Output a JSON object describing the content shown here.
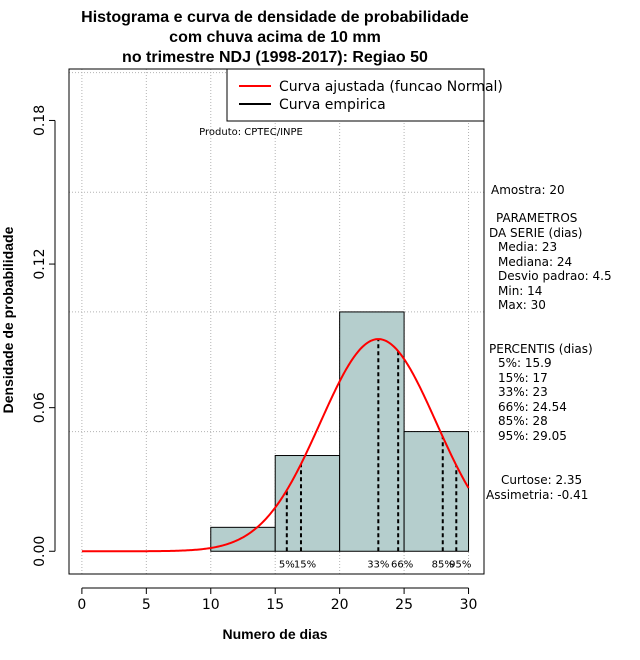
{
  "chart_data": {
    "type": "histogram",
    "title_lines": [
      "Histograma e curva de densidade de probabilidade",
      "com chuva acima de 10 mm",
      "no trimestre NDJ (1998-2017): Regiao 50"
    ],
    "xlabel": "Numero de dias",
    "ylabel": "Densidade de probabilidade",
    "xlim": [
      -1,
      31.2
    ],
    "ylim": [
      -0.0095,
      0.2015
    ],
    "x_ticks": [
      0,
      5,
      10,
      15,
      20,
      25,
      30
    ],
    "y_ticks": [
      0.0,
      0.06,
      0.12,
      0.18
    ],
    "y_tick_labels": [
      "0.00",
      "0.06",
      "0.12",
      "0.18"
    ],
    "grid": true,
    "grid_x": [
      0,
      5,
      10,
      15,
      20,
      25,
      30
    ],
    "grid_y": [
      0.05,
      0.1,
      0.15,
      0.2
    ],
    "bins": [
      {
        "from": 10,
        "to": 15,
        "density": 0.01
      },
      {
        "from": 15,
        "to": 20,
        "density": 0.04
      },
      {
        "from": 20,
        "to": 25,
        "density": 0.1
      },
      {
        "from": 25,
        "to": 30,
        "density": 0.05
      }
    ],
    "bar_color": "#b5cecd",
    "fitted_curve": {
      "name": "Curva ajustada (funcao Normal)",
      "distribution": "normal",
      "mean": 23,
      "sd": 4.5,
      "x_range": [
        0,
        30
      ],
      "color": "#ff0000"
    },
    "empirical_curve": {
      "name": "Curva empirica",
      "color": "#000000"
    },
    "legend_position": "top-right",
    "percentile_lines": [
      {
        "x": 15.9,
        "label": "5%"
      },
      {
        "x": 17,
        "label": "15%"
      },
      {
        "x": 23,
        "label": "33%"
      },
      {
        "x": 24.54,
        "label": "66%"
      },
      {
        "x": 28,
        "label": "85%"
      },
      {
        "x": 29.05,
        "label": "95%"
      }
    ],
    "annotation": "Produto: CPTEC/INPE"
  },
  "side_panel": {
    "sample": "Amostra: 20",
    "params_title_1": "PARAMETROS",
    "params_title_2": "DA SERIE (dias)",
    "params": [
      "Media: 23",
      "Mediana: 24",
      "Desvio padrao: 4.5",
      "Min: 14",
      "Max: 30"
    ],
    "percentiles_title": "PERCENTIS (dias)",
    "percentiles": [
      "5%: 15.9",
      "15%: 17",
      "33%: 23",
      "66%: 24.54",
      "85%: 28",
      "95%: 29.05"
    ],
    "kurtosis": "Curtose: 2.35",
    "skewness": "Assimetria: -0.41"
  }
}
